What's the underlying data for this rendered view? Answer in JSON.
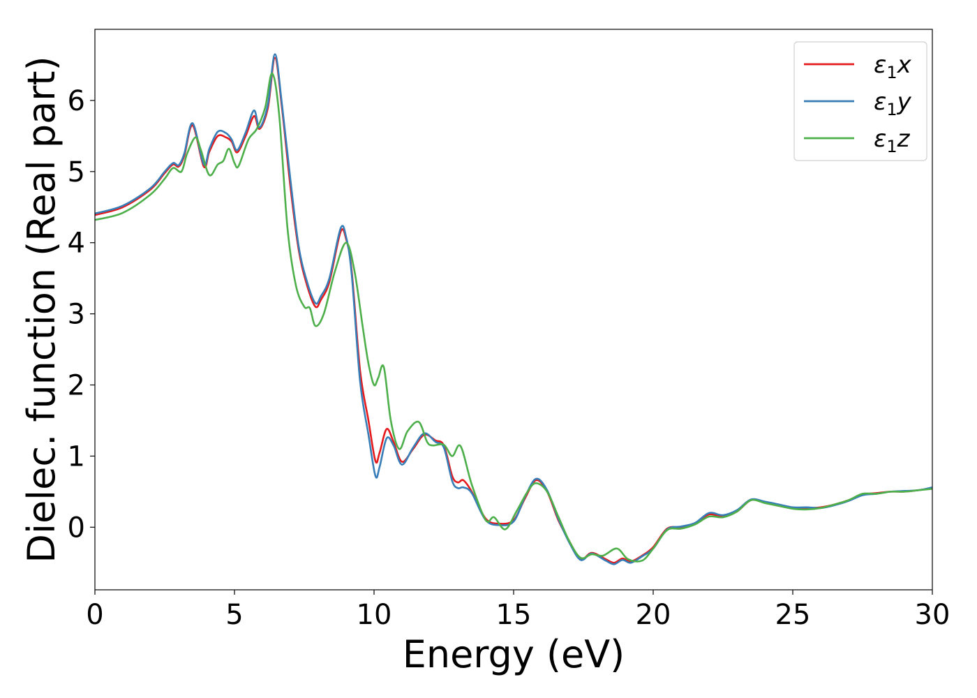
{
  "chart_data": {
    "type": "line",
    "title": "",
    "xlabel": "Energy (eV)",
    "ylabel": "Dielec. function (Real part)",
    "xlim": [
      0,
      30
    ],
    "ylim": [
      -0.88,
      7.0
    ],
    "xticks": [
      0,
      5,
      10,
      15,
      20,
      25,
      30
    ],
    "yticks": [
      0,
      1,
      2,
      3,
      4,
      5,
      6
    ],
    "grid": false,
    "legend_position": "top-right",
    "series": [
      {
        "name": "ε₁x",
        "legend": {
          "base": "ε",
          "sub": "1",
          "var": "x"
        },
        "color": "#e41a1c",
        "x": [
          0,
          1,
          2,
          2.5,
          2.8,
          3.0,
          3.2,
          3.5,
          3.9,
          4.1,
          4.4,
          4.7,
          4.9,
          5.1,
          5.4,
          5.7,
          5.9,
          6.2,
          6.45,
          6.7,
          7.0,
          7.3,
          7.6,
          7.9,
          8.1,
          8.4,
          8.8,
          9.0,
          9.2,
          9.5,
          9.8,
          10.05,
          10.2,
          10.45,
          10.7,
          11.0,
          11.4,
          11.8,
          12.2,
          12.5,
          12.8,
          13.0,
          13.2,
          13.5,
          14.0,
          14.5,
          15.0,
          15.4,
          15.8,
          16.2,
          16.6,
          17.0,
          17.4,
          17.8,
          18.3,
          18.6,
          18.9,
          19.2,
          19.6,
          20.0,
          20.5,
          21.0,
          21.5,
          22.0,
          22.5,
          23.0,
          23.5,
          24.0,
          24.5,
          25.0,
          25.5,
          26.0,
          26.5,
          27.0,
          27.5,
          28.0,
          28.5,
          29.0,
          29.5,
          30.0
        ],
        "y": [
          4.39,
          4.5,
          4.75,
          4.98,
          5.1,
          5.07,
          5.22,
          5.65,
          5.07,
          5.28,
          5.5,
          5.48,
          5.42,
          5.27,
          5.5,
          5.78,
          5.6,
          5.9,
          6.6,
          5.9,
          4.8,
          3.9,
          3.4,
          3.1,
          3.2,
          3.45,
          4.15,
          4.05,
          3.6,
          2.2,
          1.5,
          0.93,
          1.05,
          1.38,
          1.2,
          0.92,
          1.1,
          1.3,
          1.22,
          1.15,
          0.72,
          0.63,
          0.66,
          0.5,
          0.12,
          0.05,
          0.1,
          0.4,
          0.66,
          0.5,
          0.1,
          -0.2,
          -0.45,
          -0.36,
          -0.45,
          -0.5,
          -0.44,
          -0.48,
          -0.4,
          -0.28,
          -0.02,
          0.0,
          0.05,
          0.18,
          0.15,
          0.22,
          0.38,
          0.35,
          0.3,
          0.27,
          0.27,
          0.28,
          0.32,
          0.38,
          0.46,
          0.48,
          0.5,
          0.5,
          0.52,
          0.55
        ]
      },
      {
        "name": "ε₁y",
        "legend": {
          "base": "ε",
          "sub": "1",
          "var": "y"
        },
        "color": "#377eb8",
        "x": [
          0,
          1,
          2,
          2.5,
          2.8,
          3.0,
          3.2,
          3.5,
          3.9,
          4.1,
          4.4,
          4.7,
          4.9,
          5.1,
          5.4,
          5.7,
          5.9,
          6.2,
          6.45,
          6.7,
          7.0,
          7.3,
          7.6,
          7.9,
          8.1,
          8.4,
          8.8,
          9.0,
          9.2,
          9.5,
          9.8,
          10.05,
          10.2,
          10.45,
          10.7,
          11.0,
          11.4,
          11.8,
          12.2,
          12.5,
          12.8,
          13.0,
          13.2,
          13.5,
          14.0,
          14.5,
          15.0,
          15.4,
          15.8,
          16.2,
          16.6,
          17.0,
          17.4,
          17.8,
          18.3,
          18.6,
          18.9,
          19.2,
          19.6,
          20.0,
          20.5,
          21.0,
          21.5,
          22.0,
          22.5,
          23.0,
          23.5,
          24.0,
          24.5,
          25.0,
          25.5,
          26.0,
          26.5,
          27.0,
          27.5,
          28.0,
          28.5,
          29.0,
          29.5,
          30.0
        ],
        "y": [
          4.41,
          4.52,
          4.77,
          5.0,
          5.12,
          5.09,
          5.25,
          5.68,
          5.1,
          5.32,
          5.56,
          5.54,
          5.45,
          5.3,
          5.55,
          5.86,
          5.62,
          5.95,
          6.65,
          5.95,
          4.9,
          3.95,
          3.45,
          3.15,
          3.25,
          3.5,
          4.2,
          4.08,
          3.55,
          2.05,
          1.3,
          0.72,
          0.85,
          1.25,
          1.15,
          0.88,
          1.12,
          1.32,
          1.2,
          1.12,
          0.65,
          0.55,
          0.56,
          0.48,
          0.1,
          0.03,
          0.08,
          0.42,
          0.68,
          0.52,
          0.12,
          -0.22,
          -0.46,
          -0.37,
          -0.47,
          -0.52,
          -0.46,
          -0.5,
          -0.41,
          -0.3,
          -0.03,
          0.01,
          0.06,
          0.2,
          0.17,
          0.24,
          0.39,
          0.36,
          0.32,
          0.28,
          0.28,
          0.27,
          0.31,
          0.37,
          0.45,
          0.47,
          0.5,
          0.51,
          0.52,
          0.56
        ]
      },
      {
        "name": "ε₁z",
        "legend": {
          "base": "ε",
          "sub": "1",
          "var": "z"
        },
        "color": "#4daf4a",
        "x": [
          0,
          1,
          2,
          2.5,
          2.8,
          3.1,
          3.3,
          3.6,
          3.8,
          4.1,
          4.4,
          4.6,
          4.8,
          5.0,
          5.15,
          5.5,
          5.8,
          6.1,
          6.35,
          6.6,
          6.9,
          7.2,
          7.5,
          7.7,
          7.9,
          8.2,
          8.6,
          9.0,
          9.3,
          9.6,
          9.8,
          10.0,
          10.15,
          10.35,
          10.6,
          10.9,
          11.2,
          11.6,
          11.9,
          12.1,
          12.5,
          12.8,
          13.1,
          13.5,
          14.0,
          14.3,
          14.7,
          15.1,
          15.5,
          15.8,
          16.2,
          16.6,
          17.0,
          17.4,
          17.8,
          18.2,
          18.7,
          19.1,
          19.6,
          20.0,
          20.5,
          21.0,
          21.5,
          22.0,
          22.5,
          23.0,
          23.5,
          24.0,
          24.5,
          25.0,
          25.5,
          26.0,
          26.5,
          27.0,
          27.5,
          28.0,
          28.5,
          29.0,
          29.5,
          30.0
        ],
        "y": [
          4.32,
          4.42,
          4.68,
          4.9,
          5.05,
          5.0,
          5.25,
          5.48,
          5.3,
          4.95,
          5.1,
          5.15,
          5.32,
          5.12,
          5.08,
          5.45,
          5.6,
          5.9,
          6.38,
          5.8,
          4.2,
          3.4,
          3.1,
          3.08,
          2.83,
          3.0,
          3.6,
          4.0,
          3.6,
          2.8,
          2.3,
          2.0,
          2.1,
          2.25,
          1.5,
          1.1,
          1.35,
          1.48,
          1.2,
          1.15,
          1.16,
          1.0,
          1.14,
          0.6,
          0.1,
          0.14,
          -0.03,
          0.22,
          0.5,
          0.62,
          0.5,
          0.15,
          -0.2,
          -0.43,
          -0.38,
          -0.4,
          -0.3,
          -0.45,
          -0.47,
          -0.3,
          -0.04,
          -0.02,
          0.04,
          0.15,
          0.14,
          0.22,
          0.38,
          0.34,
          0.3,
          0.26,
          0.25,
          0.27,
          0.32,
          0.38,
          0.47,
          0.47,
          0.5,
          0.5,
          0.52,
          0.54
        ]
      }
    ]
  }
}
